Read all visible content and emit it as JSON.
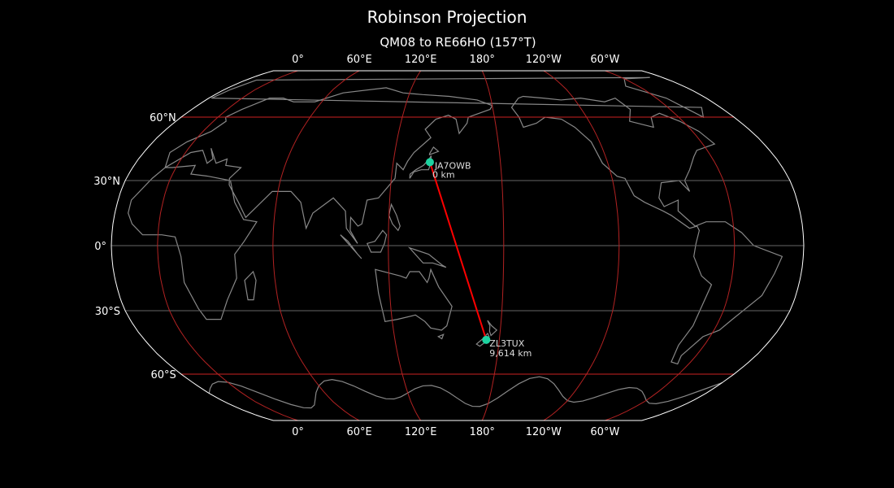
{
  "title": "Robinson Projection",
  "subtitle": "QM08 to RE66HO (157°T)",
  "map": {
    "projection": "Robinson",
    "central_longitude": 156,
    "background": "#000000",
    "coastline_color": "#888888",
    "meridian_color": "#b22222",
    "lat60_color": "#cc2222",
    "lat30_color": "#666666",
    "lon_labels": [
      "0°",
      "60°E",
      "120°E",
      "180°",
      "120°W",
      "60°W"
    ],
    "lon_values": [
      0,
      60,
      120,
      180,
      240,
      300
    ],
    "lat_labels": [
      "60°N",
      "30°N",
      "0°",
      "30°S",
      "60°S"
    ],
    "lat_values": [
      60,
      30,
      0,
      -30,
      -60
    ]
  },
  "path": {
    "color": "#ff0000",
    "marker_color": "#1dd3a0",
    "from": {
      "call": "JA7OWB",
      "distance": "0 km",
      "lat": 38.5,
      "lon": 140.5
    },
    "to": {
      "call": "ZL3TUX",
      "distance": "9,614 km",
      "lat": -43.5,
      "lon": 172.5
    }
  }
}
